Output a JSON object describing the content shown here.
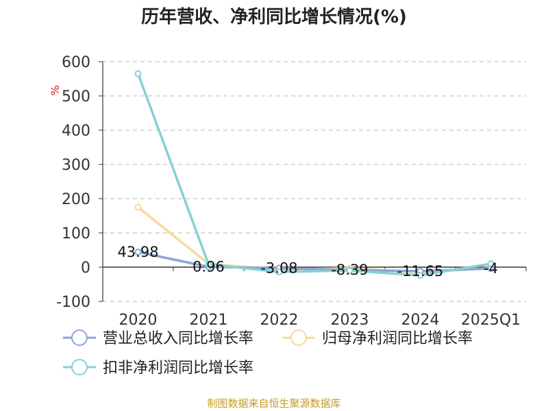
{
  "chart_data": {
    "type": "line",
    "title": "历年营收、净利同比增长情况(%)",
    "ylabel": "%",
    "xlabel": "",
    "categories": [
      "2020",
      "2021",
      "2022",
      "2023",
      "2024",
      "2025Q1"
    ],
    "ylim": [
      -100,
      600
    ],
    "yticks": [
      600,
      500,
      400,
      300,
      200,
      100,
      0,
      -100
    ],
    "grid": true,
    "legend_position": "bottom",
    "series": [
      {
        "name": "营业总收入同比增长率",
        "color": "#8aa6d6",
        "values": [
          43.98,
          0.96,
          -3.08,
          -8.39,
          -11.65,
          -4
        ],
        "labels": [
          "43.98",
          "0.96",
          "-3.08",
          "-8.39",
          "-11.65",
          "-4"
        ]
      },
      {
        "name": "归母净利润同比增长率",
        "color": "#f8d89a",
        "values": [
          175,
          10,
          -8,
          -3,
          -15,
          -3
        ]
      },
      {
        "name": "扣非净利润同比增长率",
        "color": "#86d0d6",
        "values": [
          565,
          8,
          -14,
          -10,
          -24,
          10
        ]
      }
    ]
  },
  "footer": {
    "source": "制图数据来自恒生聚源数据库"
  }
}
